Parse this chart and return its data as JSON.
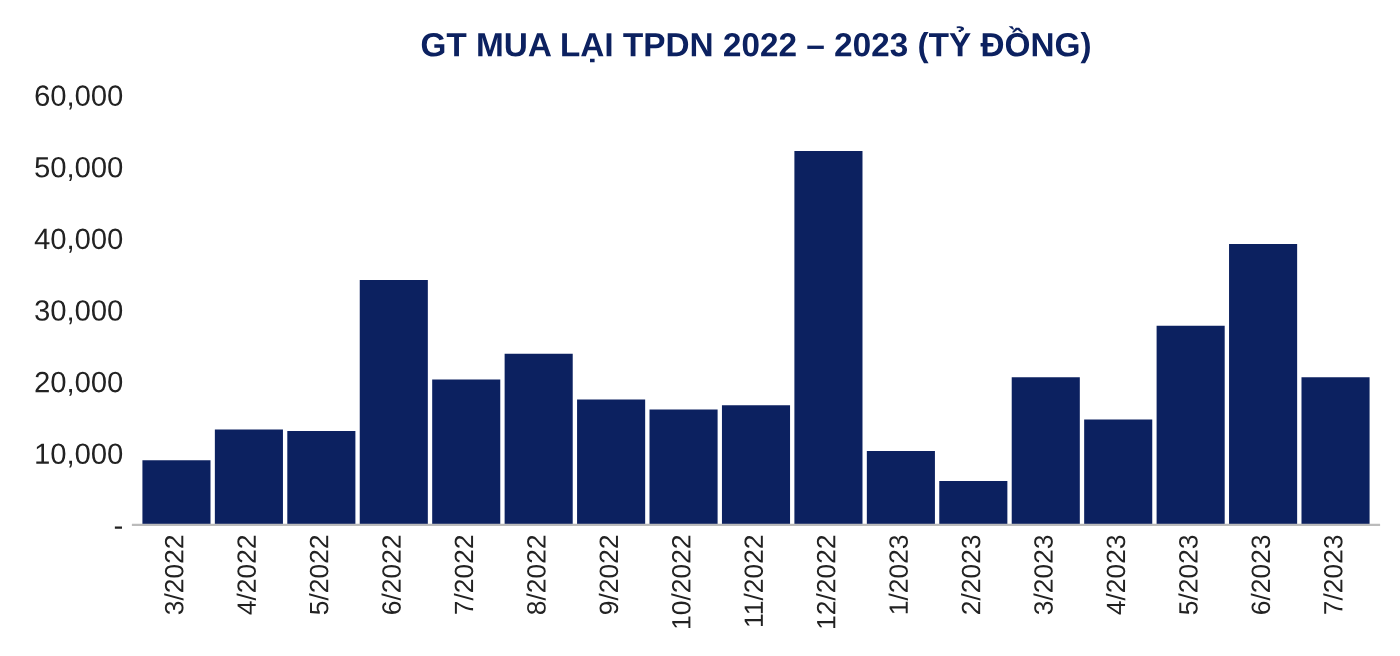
{
  "chart_data": {
    "type": "bar",
    "title": "GT MUA LẠI TPDN 2022 – 2023 (TỶ ĐỒNG)",
    "categories": [
      "3/2022",
      "4/2022",
      "5/2022",
      "6/2022",
      "7/2022",
      "8/2022",
      "9/2022",
      "10/2022",
      "11/2022",
      "12/2022",
      "1/2023",
      "2/2023",
      "3/2023",
      "4/2023",
      "5/2023",
      "6/2023",
      "7/2023"
    ],
    "values": [
      9000,
      13300,
      13100,
      34200,
      20300,
      23900,
      17500,
      16100,
      16700,
      52200,
      10300,
      6100,
      20600,
      14700,
      27800,
      39200,
      20600
    ],
    "color": "#0c2160",
    "ylim": [
      0,
      60000
    ],
    "yticks": [
      {
        "value": 0,
        "label": "-"
      },
      {
        "value": 10000,
        "label": "10,000"
      },
      {
        "value": 20000,
        "label": "20,000"
      },
      {
        "value": 30000,
        "label": "30,000"
      },
      {
        "value": 40000,
        "label": "40,000"
      },
      {
        "value": 50000,
        "label": "50,000"
      },
      {
        "value": 60000,
        "label": "60,000"
      }
    ],
    "grid": false,
    "legend": false
  }
}
